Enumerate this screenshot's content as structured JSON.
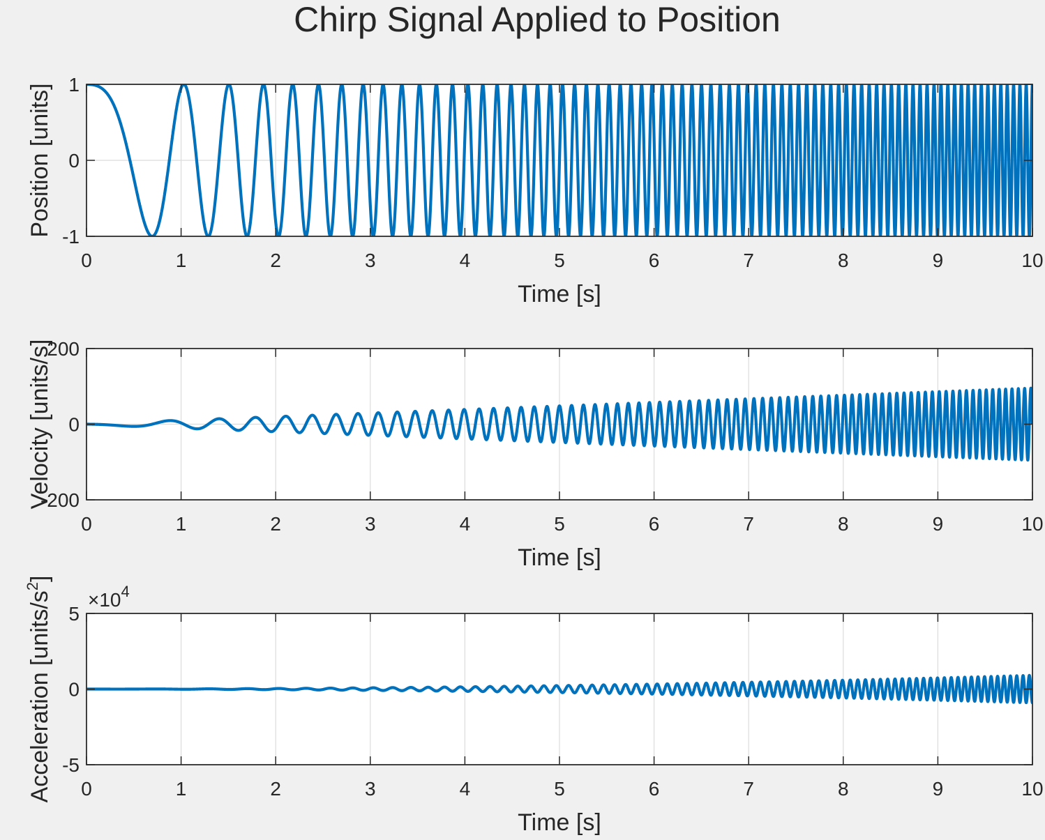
{
  "chart_data": {
    "title": "Chirp Signal Applied to Position",
    "type": "line",
    "series_color": "#0072bd",
    "grid": true,
    "subplots": [
      {
        "name": "position",
        "xlabel": "Time [s]",
        "ylabel": "Position [units]",
        "xlim": [
          0,
          10
        ],
        "ylim": [
          -1,
          1
        ],
        "xticks": [
          0,
          1,
          2,
          3,
          4,
          5,
          6,
          7,
          8,
          9,
          10
        ],
        "yticks": [
          -1,
          0,
          1
        ],
        "ytick_labels": [
          "-1",
          "0",
          "1"
        ],
        "exponent_label": "",
        "signal": {
          "kind": "position",
          "f0": 0.2,
          "k": 1.5,
          "amplitude": 1
        }
      },
      {
        "name": "velocity",
        "xlabel": "Time [s]",
        "ylabel": "Velocity [units/s]",
        "xlim": [
          0,
          10
        ],
        "ylim": [
          -200,
          200
        ],
        "xticks": [
          0,
          1,
          2,
          3,
          4,
          5,
          6,
          7,
          8,
          9,
          10
        ],
        "yticks": [
          -200,
          0,
          200
        ],
        "ytick_labels": [
          "-200",
          "0",
          "200"
        ],
        "exponent_label": "",
        "signal": {
          "kind": "velocity",
          "f0": 0.2,
          "k": 1.5,
          "amplitude": 1
        }
      },
      {
        "name": "acceleration",
        "xlabel": "Time [s]",
        "ylabel": "Acceleration [units/s",
        "ylabel_sup": "2",
        "ylabel_close": "]",
        "xlim": [
          0,
          10
        ],
        "ylim": [
          -50000,
          50000
        ],
        "xticks": [
          0,
          1,
          2,
          3,
          4,
          5,
          6,
          7,
          8,
          9,
          10
        ],
        "yticks": [
          -50000,
          0,
          50000
        ],
        "ytick_labels": [
          "-5",
          "0",
          "5"
        ],
        "exponent_label": "×10",
        "exponent_sup": "4",
        "signal": {
          "kind": "acceleration",
          "f0": 0.2,
          "k": 1.5,
          "amplitude": 1
        }
      }
    ]
  }
}
